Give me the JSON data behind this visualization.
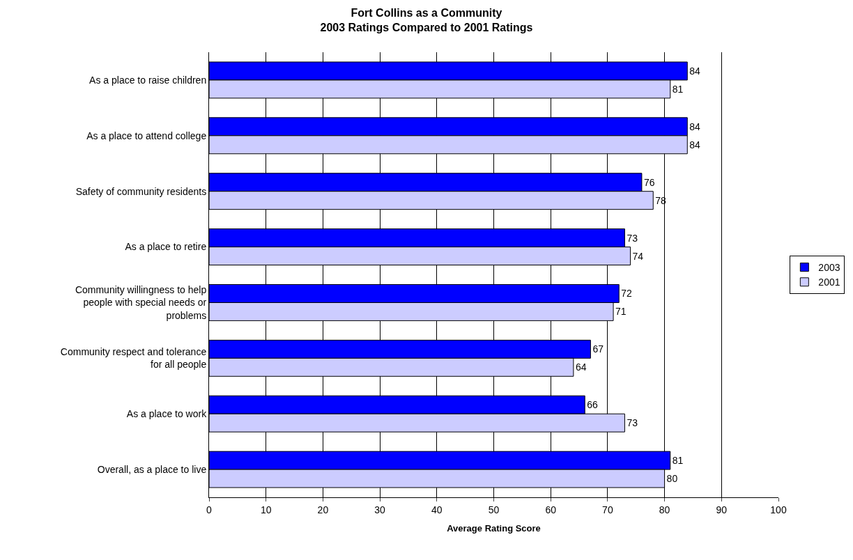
{
  "chart_data": {
    "type": "bar",
    "orientation": "horizontal",
    "title": "Fort Collins as a Community\n2003 Ratings Compared to 2001 Ratings",
    "xlabel": "Average Rating Score",
    "categories": [
      "As a place to raise children",
      "As a place to attend college",
      "Safety of community residents",
      "As a place to retire",
      "Community willingness to help people with special needs or problems",
      "Community respect and tolerance for all people",
      "As a place to work",
      "Overall, as a place to live"
    ],
    "series": [
      {
        "name": "2003",
        "color": "#0000ff",
        "values": [
          84,
          84,
          76,
          73,
          72,
          67,
          66,
          81
        ]
      },
      {
        "name": "2001",
        "color": "#ccccff",
        "values": [
          81,
          84,
          78,
          74,
          71,
          64,
          73,
          80
        ]
      }
    ],
    "xlim": [
      0,
      100
    ],
    "xticks": [
      0,
      10,
      20,
      30,
      40,
      50,
      60,
      70,
      80,
      90,
      100
    ],
    "grid": "x",
    "legend": "right",
    "data_labels": true
  }
}
